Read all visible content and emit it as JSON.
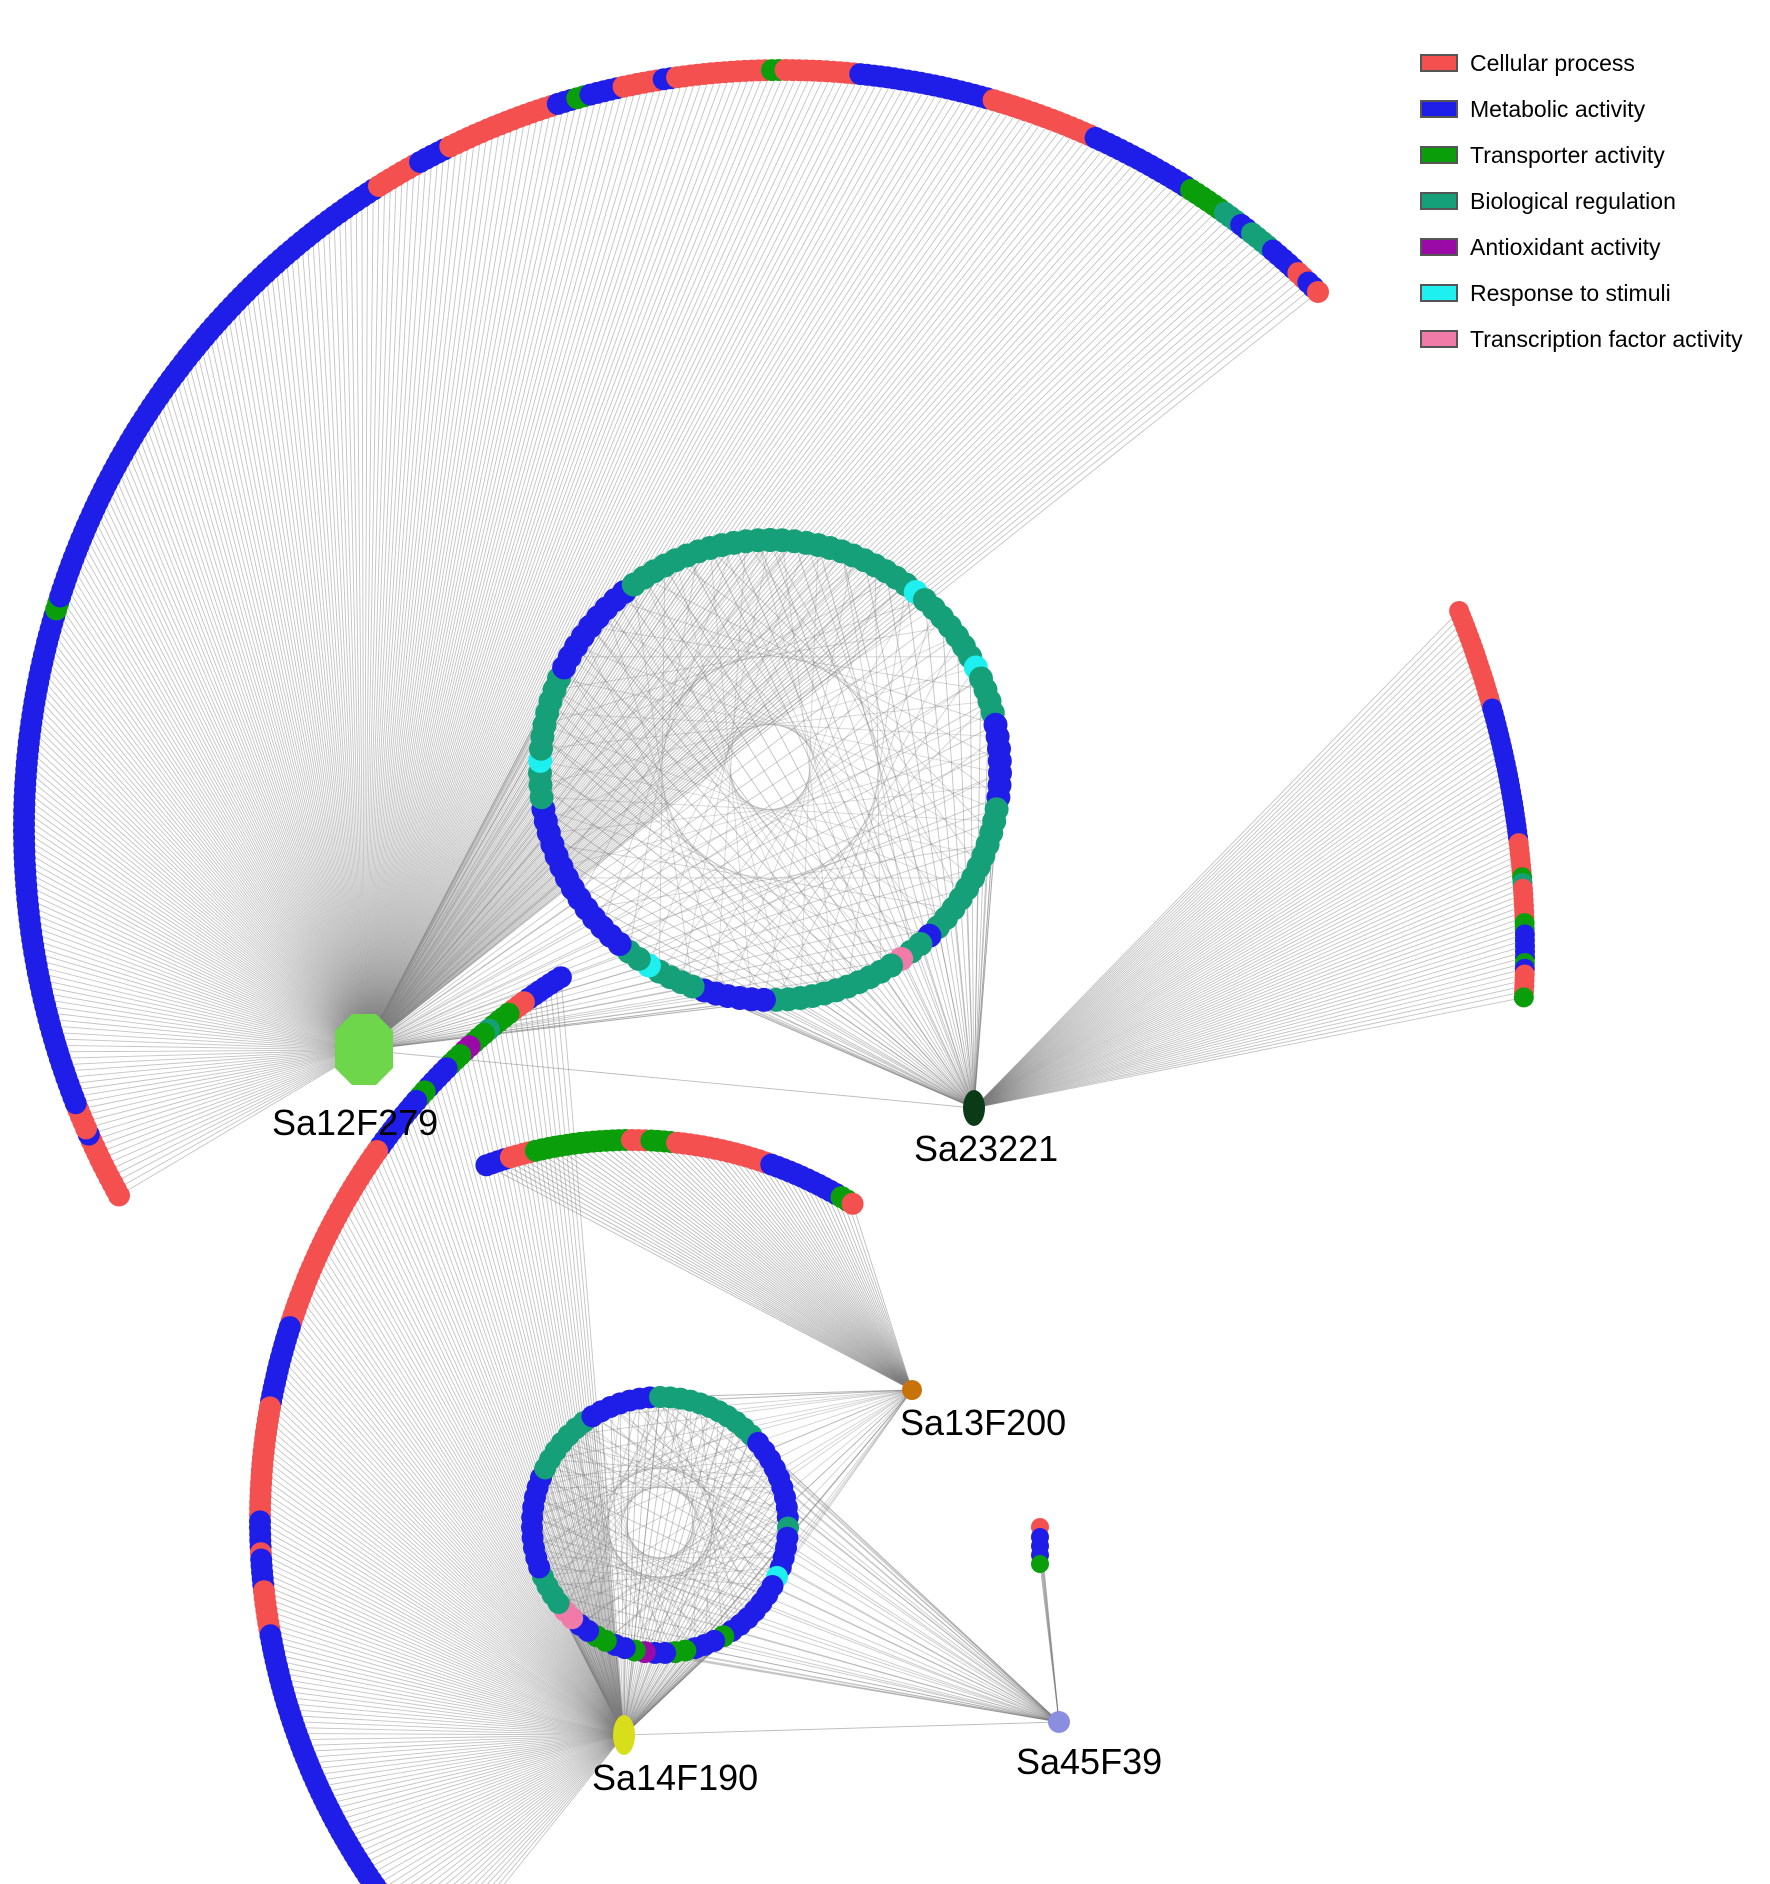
{
  "legend": {
    "items": [
      {
        "label": "Cellular process",
        "color": "#f4504f"
      },
      {
        "label": "Metabolic activity",
        "color": "#1e1ee8"
      },
      {
        "label": "Transporter activity",
        "color": "#0a9e0a"
      },
      {
        "label": "Biological regulation",
        "color": "#16a07a"
      },
      {
        "label": "Antioxidant activity",
        "color": "#9a0aa6"
      },
      {
        "label": "Response to stimuli",
        "color": "#1ef0f0"
      },
      {
        "label": "Transcription factor activity",
        "color": "#f07aa8"
      }
    ]
  },
  "hubs": [
    {
      "id": "Sa12F279",
      "label": "Sa12F279",
      "color": "#6dd64a",
      "shape": "octagon"
    },
    {
      "id": "Sa23221",
      "label": "Sa23221",
      "color": "#0b3b16",
      "shape": "ellipse"
    },
    {
      "id": "Sa13F200",
      "label": "Sa13F200",
      "color": "#c8730a",
      "shape": "circle"
    },
    {
      "id": "Sa14F190",
      "label": "Sa14F190",
      "color": "#d8de1a",
      "shape": "ellipse"
    },
    {
      "id": "Sa45F39",
      "label": "Sa45F39",
      "color": "#8a8ee0",
      "shape": "circle"
    }
  ]
}
